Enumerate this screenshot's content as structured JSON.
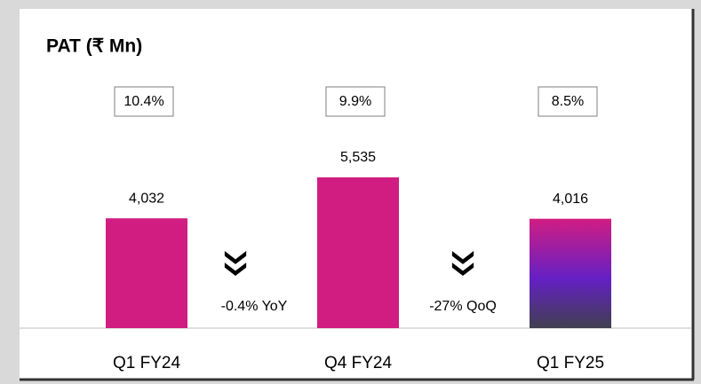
{
  "chart_data": {
    "type": "bar",
    "title": "PAT (₹ Mn)",
    "categories": [
      "Q1 FY24",
      "Q4 FY24",
      "Q1 FY25"
    ],
    "values": [
      4032,
      5535,
      4016
    ],
    "value_labels": [
      "4,032",
      "5,535",
      "4,016"
    ],
    "margins": [
      "10.4%",
      "9.9%",
      "8.5%"
    ],
    "annotations": [
      "-0.4% YoY",
      "-27% QoQ"
    ],
    "color": "#d11d82",
    "last_bar_gradient": [
      "#d11d82",
      "#6420c4",
      "#404050"
    ]
  }
}
